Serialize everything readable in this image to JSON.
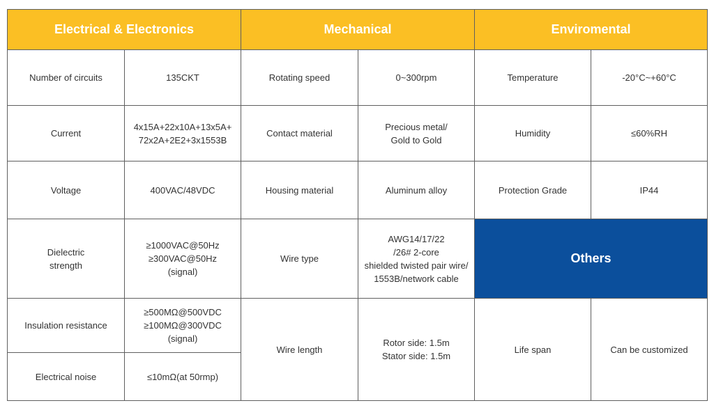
{
  "headers": {
    "electrical": "Electrical & Electronics",
    "mechanical": "Mechanical",
    "environmental": "Enviromental",
    "others": "Others"
  },
  "electrical": [
    {
      "label": "Number of circuits",
      "value": "135CKT"
    },
    {
      "label": "Current",
      "value": "4x15A+22x10A+13x5A+\n72x2A+2E2+3x1553B"
    },
    {
      "label": "Voltage",
      "value": "400VAC/48VDC"
    },
    {
      "label": "Dielectric\nstrength",
      "value": "≥1000VAC@50Hz\n≥300VAC@50Hz\n(signal)"
    },
    {
      "label": "Insulation resistance",
      "value": "≥500MΩ@500VDC\n≥100MΩ@300VDC\n(signal)"
    },
    {
      "label": "Electrical noise",
      "value": "≤10mΩ(at 50rmp)"
    }
  ],
  "mechanical": [
    {
      "label": "Rotating speed",
      "value": "0~300rpm"
    },
    {
      "label": "Contact material",
      "value": "Precious metal/\nGold to Gold"
    },
    {
      "label": "Housing material",
      "value": "Aluminum alloy"
    },
    {
      "label": "Wire type",
      "value": "AWG14/17/22\n/26# 2-core\nshielded twisted pair wire/\n1553B/network cable"
    },
    {
      "label": "Wire length",
      "value": "Rotor side: 1.5m\nStator side: 1.5m"
    }
  ],
  "environmental": [
    {
      "label": "Temperature",
      "value": "-20°C~+60°C"
    },
    {
      "label": "Humidity",
      "value": "≤60%RH"
    },
    {
      "label": "Protection Grade",
      "value": "IP44"
    }
  ],
  "others": [
    {
      "label": "Life span",
      "value": "Can be customized"
    }
  ]
}
